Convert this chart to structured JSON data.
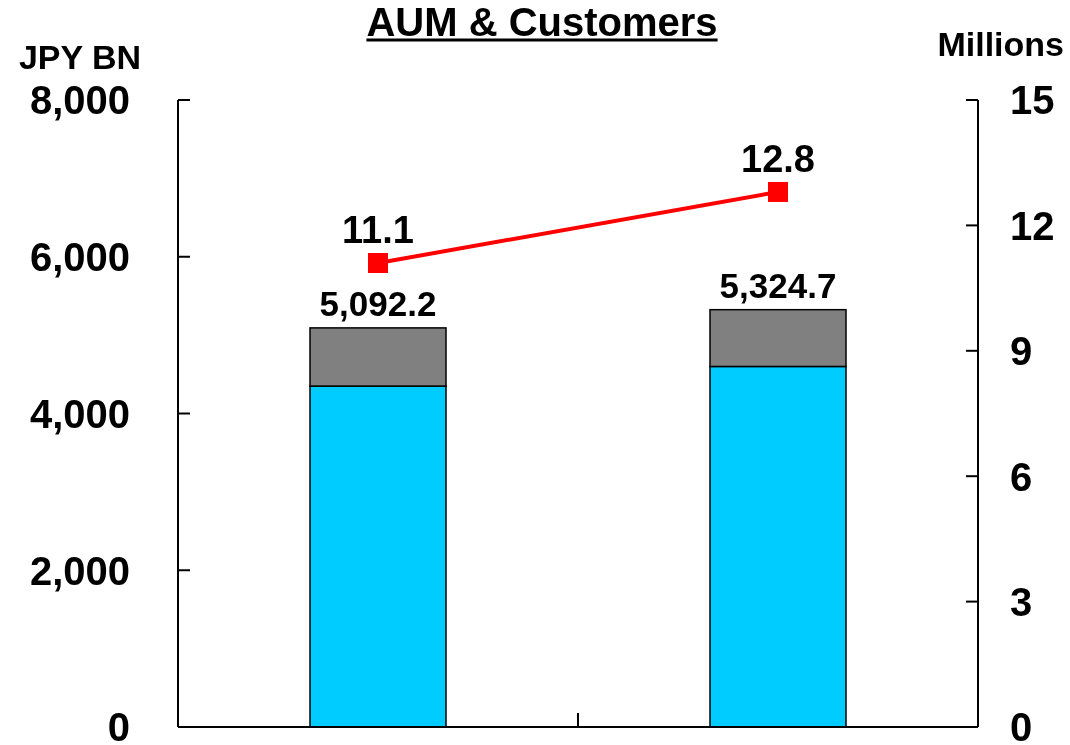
{
  "chart_data": {
    "type": "bar",
    "title": "AUM & Customers",
    "ylabel": "JPY BN",
    "y2label": "Millions",
    "categories": [
      null,
      null
    ],
    "stacked": true,
    "series": [
      {
        "color": "#00ccff",
        "values": [
          4350,
          4600
        ]
      },
      {
        "color": "#808080",
        "values": [
          742.2,
          724.7
        ]
      },
      {
        "type": "line",
        "axis": "y2",
        "color": "#ff0000",
        "values": [
          11.1,
          12.8
        ],
        "value_labels": [
          "11.1",
          "12.8"
        ]
      }
    ],
    "totals": [
      "5,092.2",
      "5,324.7"
    ],
    "marker": "square",
    "line_style": "solid",
    "ylim": [
      0,
      8000
    ],
    "yticks": [
      0,
      {
        "value": 2000,
        "label": "2,000"
      },
      {
        "value": 4000,
        "label": "4,000"
      },
      {
        "value": 6000,
        "label": "6,000"
      },
      {
        "value": 8000,
        "label": "8,000"
      }
    ],
    "y2lim": [
      0,
      15
    ],
    "y2ticks": [
      0,
      3,
      6,
      9,
      12,
      15
    ]
  }
}
